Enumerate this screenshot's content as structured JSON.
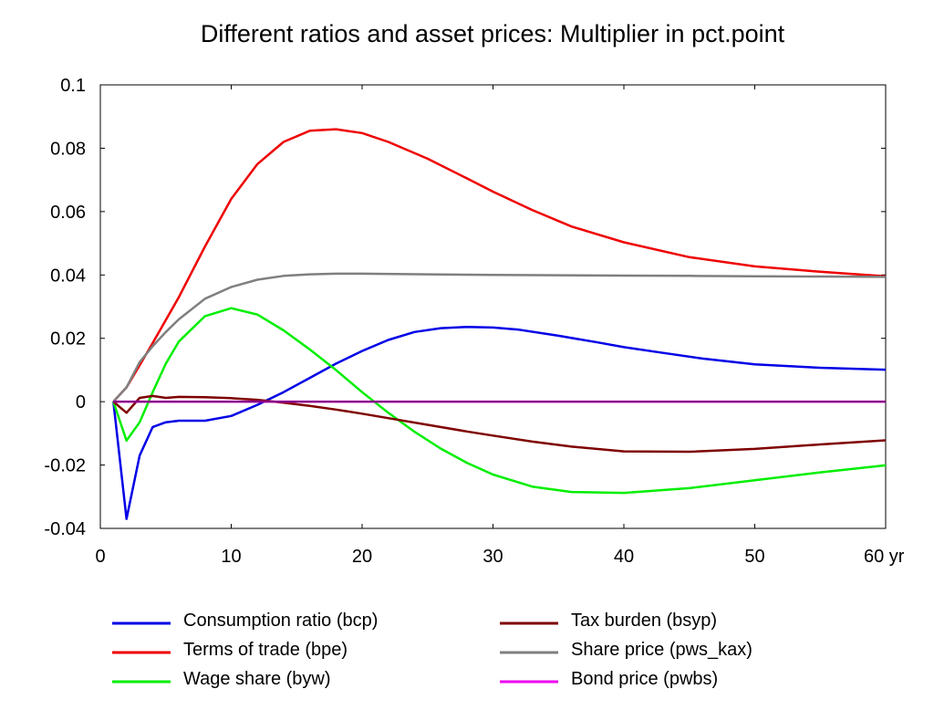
{
  "chart_data": {
    "type": "line",
    "title": "Different ratios and asset prices: Multiplier in pct.point",
    "x_unit_label": "yr",
    "xlim": [
      0,
      60
    ],
    "ylim": [
      -0.04,
      0.1
    ],
    "x_ticks": [
      0,
      10,
      20,
      30,
      40,
      50,
      60
    ],
    "x_tick_labels": [
      "0",
      "10",
      "20",
      "30",
      "40",
      "50",
      "60 yr"
    ],
    "y_ticks": [
      -0.04,
      -0.02,
      0,
      0.02,
      0.04,
      0.06,
      0.08,
      0.1
    ],
    "y_tick_labels": [
      "-0.04",
      "-0.02",
      "0",
      "0.02",
      "0.04",
      "0.06",
      "0.08",
      "0.1"
    ],
    "grid": false,
    "legend_position": "bottom",
    "series": [
      {
        "name": "Consumption ratio (bcp)",
        "color": "#0000e6",
        "x": [
          1,
          2,
          3,
          4,
          5,
          6,
          7,
          8,
          10,
          12,
          14,
          16,
          18,
          20,
          22,
          24,
          26,
          28,
          30,
          32,
          35,
          38,
          40,
          43,
          46,
          50,
          55,
          60
        ],
        "y": [
          0,
          -0.037,
          -0.017,
          -0.008,
          -0.0065,
          -0.006,
          -0.006,
          -0.006,
          -0.0045,
          -0.001,
          0.003,
          0.0075,
          0.012,
          0.016,
          0.0195,
          0.022,
          0.0232,
          0.0236,
          0.0234,
          0.0227,
          0.0208,
          0.0187,
          0.0172,
          0.0154,
          0.0136,
          0.0118,
          0.0107,
          0.0101
        ]
      },
      {
        "name": "Terms of trade (bpe)",
        "color": "#ee0000",
        "x": [
          1,
          2,
          3,
          4,
          6,
          8,
          10,
          12,
          14,
          16,
          18,
          20,
          22,
          25,
          28,
          30,
          33,
          36,
          40,
          45,
          50,
          55,
          60
        ],
        "y": [
          0,
          0.0045,
          0.0115,
          0.0185,
          0.033,
          0.049,
          0.064,
          0.075,
          0.082,
          0.0855,
          0.086,
          0.0848,
          0.082,
          0.0767,
          0.0705,
          0.0663,
          0.0605,
          0.0553,
          0.0503,
          0.0456,
          0.0427,
          0.041,
          0.0396
        ]
      },
      {
        "name": "Wage share (byw)",
        "color": "#00ee00",
        "x": [
          1,
          2,
          3,
          4,
          5,
          6,
          8,
          10,
          12,
          14,
          16,
          18,
          20,
          22,
          24,
          26,
          28,
          30,
          33,
          36,
          40,
          45,
          50,
          55,
          60
        ],
        "y": [
          0,
          -0.0123,
          -0.0065,
          0.003,
          0.012,
          0.019,
          0.027,
          0.0295,
          0.0275,
          0.0225,
          0.0165,
          0.01,
          0.003,
          -0.0035,
          -0.0095,
          -0.0148,
          -0.0193,
          -0.023,
          -0.0268,
          -0.0285,
          -0.0288,
          -0.0273,
          -0.0248,
          -0.0223,
          -0.0201
        ]
      },
      {
        "name": "Tax burden (bsyp)",
        "color": "#7f0000",
        "x": [
          1,
          2,
          3,
          4,
          5,
          6,
          8,
          10,
          12,
          14,
          16,
          18,
          20,
          22,
          25,
          28,
          30,
          33,
          36,
          40,
          45,
          50,
          55,
          60
        ],
        "y": [
          0,
          -0.0035,
          0.0012,
          0.0018,
          0.0012,
          0.0015,
          0.0014,
          0.0011,
          0.0006,
          -0.0003,
          -0.0013,
          -0.0025,
          -0.0038,
          -0.0052,
          -0.0073,
          -0.0094,
          -0.0107,
          -0.0126,
          -0.0142,
          -0.0157,
          -0.0158,
          -0.0149,
          -0.0135,
          -0.0122
        ]
      },
      {
        "name": "Share price (pws_kax)",
        "color": "#7f7f7f",
        "x": [
          1,
          2,
          3,
          4,
          5,
          6,
          8,
          10,
          12,
          14,
          16,
          18,
          20,
          25,
          30,
          35,
          40,
          45,
          50,
          55,
          60
        ],
        "y": [
          0,
          0.0045,
          0.0125,
          0.0175,
          0.022,
          0.026,
          0.0325,
          0.0362,
          0.0385,
          0.0397,
          0.0402,
          0.0404,
          0.0404,
          0.0402,
          0.04,
          0.0399,
          0.0398,
          0.0397,
          0.0396,
          0.0395,
          0.0394
        ]
      },
      {
        "name": "Bond price (pwbs)",
        "color": "#ee00ee",
        "x": [
          1,
          60
        ],
        "y": [
          0,
          0
        ]
      }
    ],
    "zero_line": {
      "y": 0,
      "color": "#7f007f"
    },
    "legend_columns": [
      [
        "Consumption ratio (bcp)",
        "Terms of trade (bpe)",
        "Wage share (byw)"
      ],
      [
        "Tax burden (bsyp)",
        "Share price (pws_kax)",
        "Bond price (pwbs)"
      ]
    ]
  }
}
